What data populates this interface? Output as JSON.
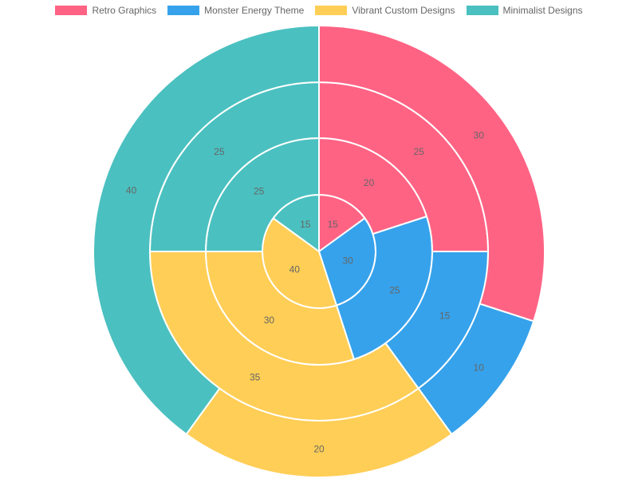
{
  "chart_data": {
    "type": "pie",
    "subtype": "multi-ring-donut",
    "legend_position": "top",
    "series_names": [
      "Retro Graphics",
      "Monster Energy Theme",
      "Vibrant Custom Designs",
      "Minimalist Designs"
    ],
    "colors": [
      "#FF6384",
      "#36A2EB",
      "#FFCE56",
      "#4BC0C0"
    ],
    "rings": [
      {
        "values": [
          15,
          30,
          40,
          15
        ]
      },
      {
        "values": [
          20,
          25,
          30,
          25
        ]
      },
      {
        "values": [
          25,
          15,
          35,
          25
        ]
      },
      {
        "values": [
          30,
          10,
          20,
          40
        ]
      }
    ]
  }
}
